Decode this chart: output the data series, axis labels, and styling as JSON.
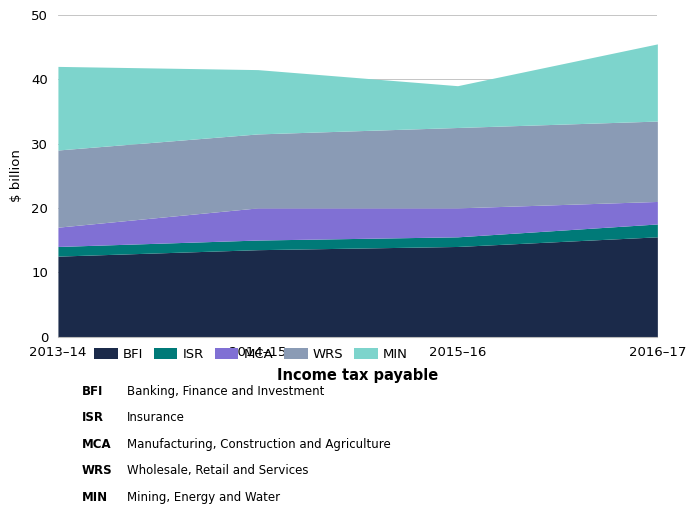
{
  "years": [
    "2013–14",
    "2014–15",
    "2015–16",
    "2016–17"
  ],
  "series": {
    "BFI": [
      12.5,
      13.5,
      14.0,
      15.5
    ],
    "ISR": [
      1.5,
      1.5,
      1.5,
      2.0
    ],
    "MCA": [
      3.0,
      5.0,
      4.5,
      3.5
    ],
    "WRS": [
      12.0,
      11.5,
      12.5,
      12.5
    ],
    "MIN": [
      13.0,
      10.0,
      6.5,
      12.0
    ]
  },
  "colors": {
    "BFI": "#1b2a4a",
    "ISR": "#007a78",
    "MCA": "#8070d4",
    "WRS": "#8a9bb5",
    "MIN": "#7dd4cc"
  },
  "ylabel": "$ billion",
  "xlabel": "Income tax payable",
  "ylim": [
    0,
    50
  ],
  "yticks": [
    0,
    10,
    20,
    30,
    40,
    50
  ],
  "legend_labels": {
    "BFI": "Banking, Finance and Investment",
    "ISR": "Insurance",
    "MCA": "Manufacturing, Construction and Agriculture",
    "WRS": "Wholesale, Retail and Services",
    "MIN": "Mining, Energy and Water"
  },
  "background_color": "#ffffff",
  "grid_color": "#bbbbbb"
}
